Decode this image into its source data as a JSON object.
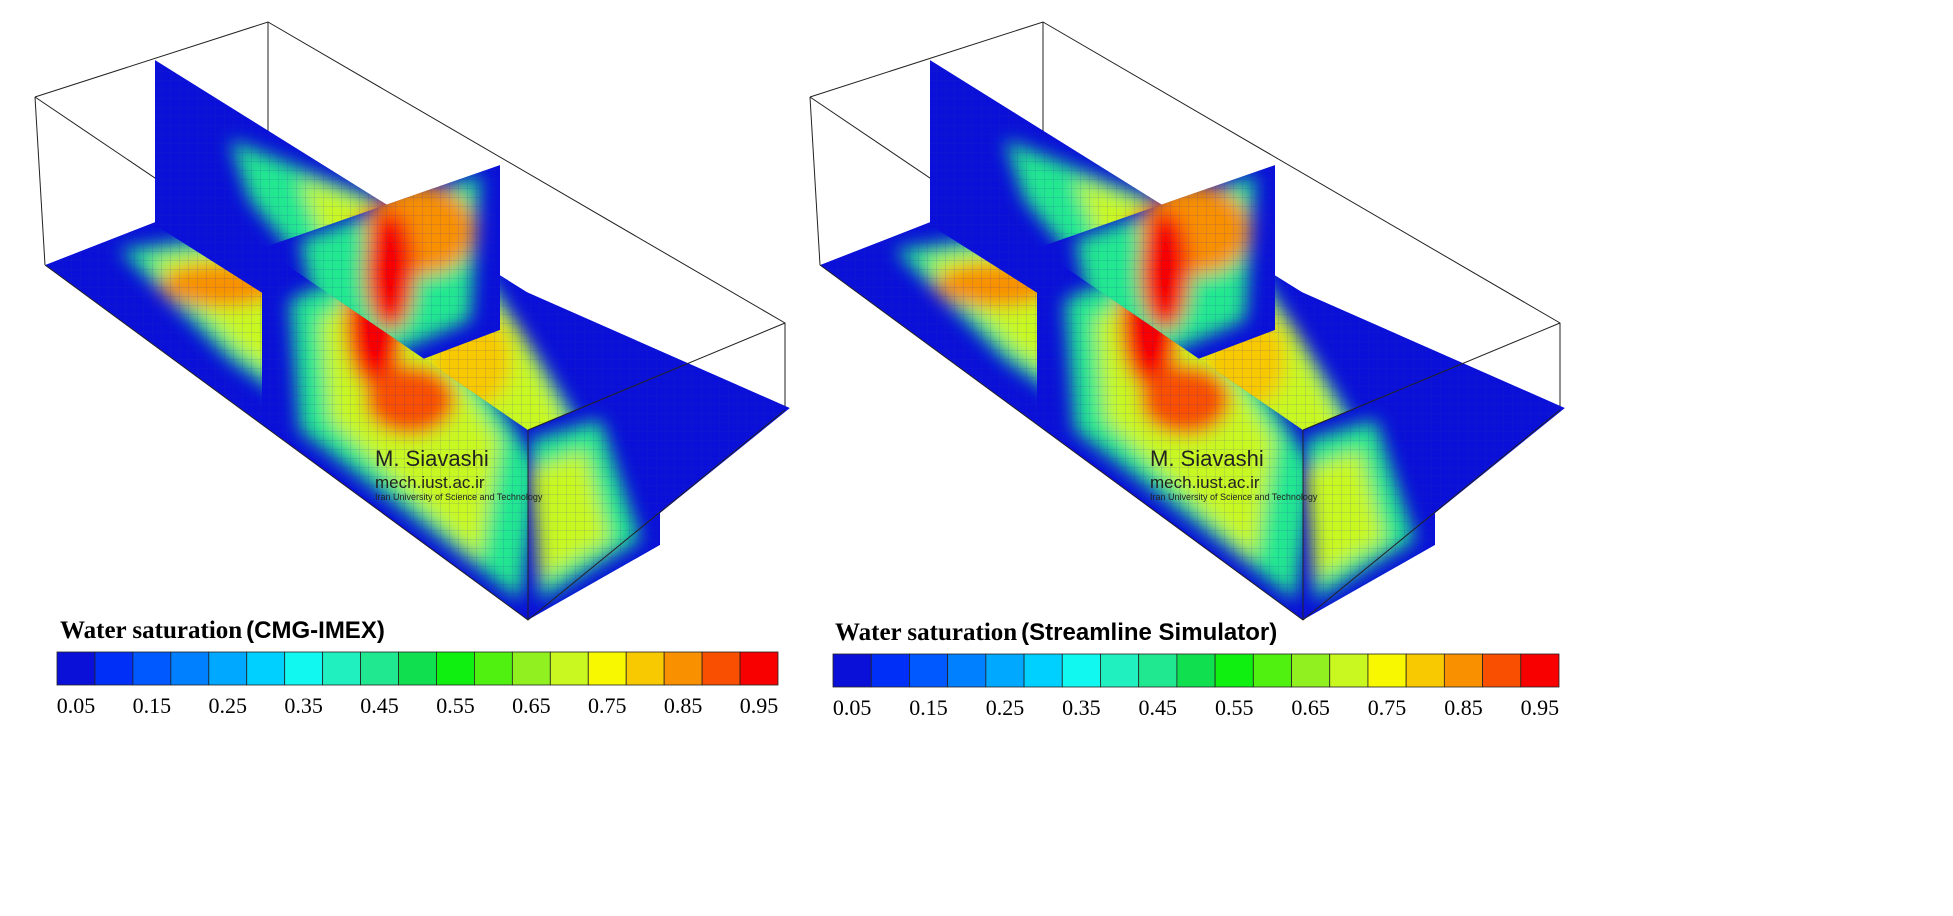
{
  "panels": [
    {
      "title": "Water saturation",
      "subtitle": "(CMG-IMEX)",
      "watermark": {
        "name": "M. Siavashi",
        "site": "mech.iust.ac.ir",
        "institution": "Iran University of Science and Technology"
      }
    },
    {
      "title": "Water saturation",
      "subtitle": "(Streamline Simulator)",
      "watermark": {
        "name": "M. Siavashi",
        "site": "mech.iust.ac.ir",
        "institution": "Iran University of Science and Technology"
      }
    }
  ],
  "colorbar": {
    "colors": [
      "#0a10d8",
      "#0030f8",
      "#0058ff",
      "#0080ff",
      "#00a8ff",
      "#00d0ff",
      "#10f8f0",
      "#20f0c0",
      "#20e890",
      "#10e050",
      "#10f010",
      "#50f010",
      "#90f020",
      "#c8f820",
      "#f8f800",
      "#f8c800",
      "#f89000",
      "#f85000",
      "#f80000"
    ],
    "ticks": [
      0.05,
      0.15,
      0.25,
      0.35,
      0.45,
      0.55,
      0.65,
      0.75,
      0.85,
      0.95
    ]
  }
}
